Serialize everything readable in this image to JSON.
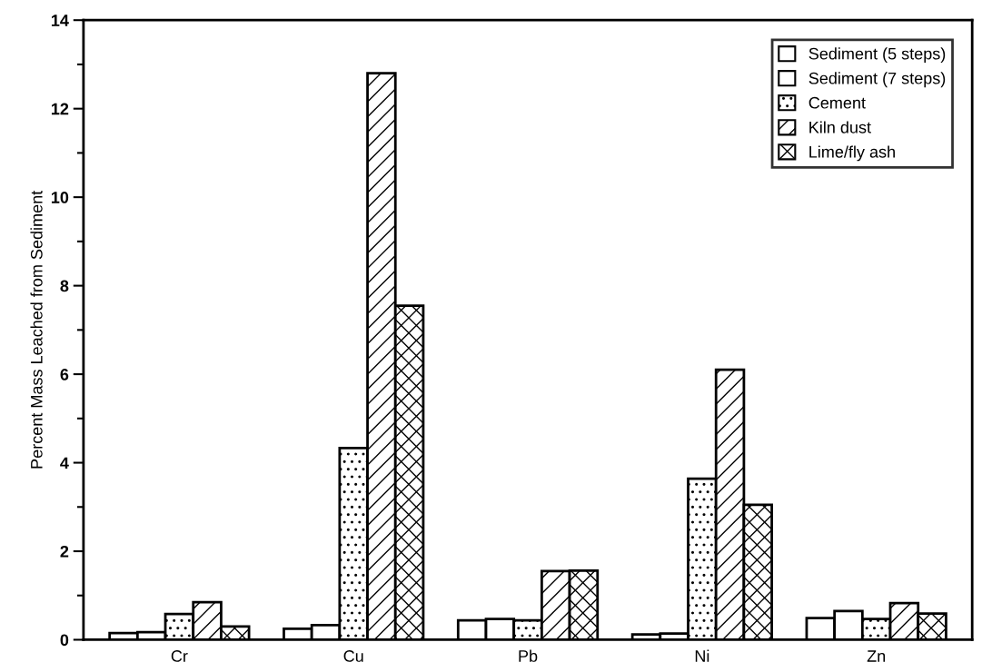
{
  "chart_data": {
    "type": "bar",
    "ylabel": "Percent Mass Leached from Sediment",
    "categories": [
      "Cr",
      "Cu",
      "Pb",
      "Ni",
      "Zn"
    ],
    "series": [
      {
        "name": "Sediment (5 steps)",
        "color": "#ffffff",
        "values": [
          0.15,
          0.25,
          0.44,
          0.12,
          0.49
        ]
      },
      {
        "name": "Sediment (7 steps)",
        "color": "#ffffff",
        "values": [
          0.17,
          0.33,
          0.47,
          0.14,
          0.65
        ]
      },
      {
        "name": "Cement",
        "color": "#000000",
        "values": [
          0.58,
          4.33,
          0.44,
          3.64,
          0.47
        ]
      },
      {
        "name": "Kiln dust",
        "color": "#000000",
        "values": [
          0.85,
          12.8,
          1.55,
          6.1,
          0.83
        ]
      },
      {
        "name": "Lime/fly ash",
        "color": "#000000",
        "values": [
          0.3,
          7.55,
          1.56,
          3.05,
          0.59
        ]
      }
    ],
    "ylim": [
      0,
      14
    ],
    "yticks": [
      0,
      2,
      4,
      6,
      8,
      10,
      12,
      14
    ],
    "grid": false,
    "legend": "top right"
  }
}
